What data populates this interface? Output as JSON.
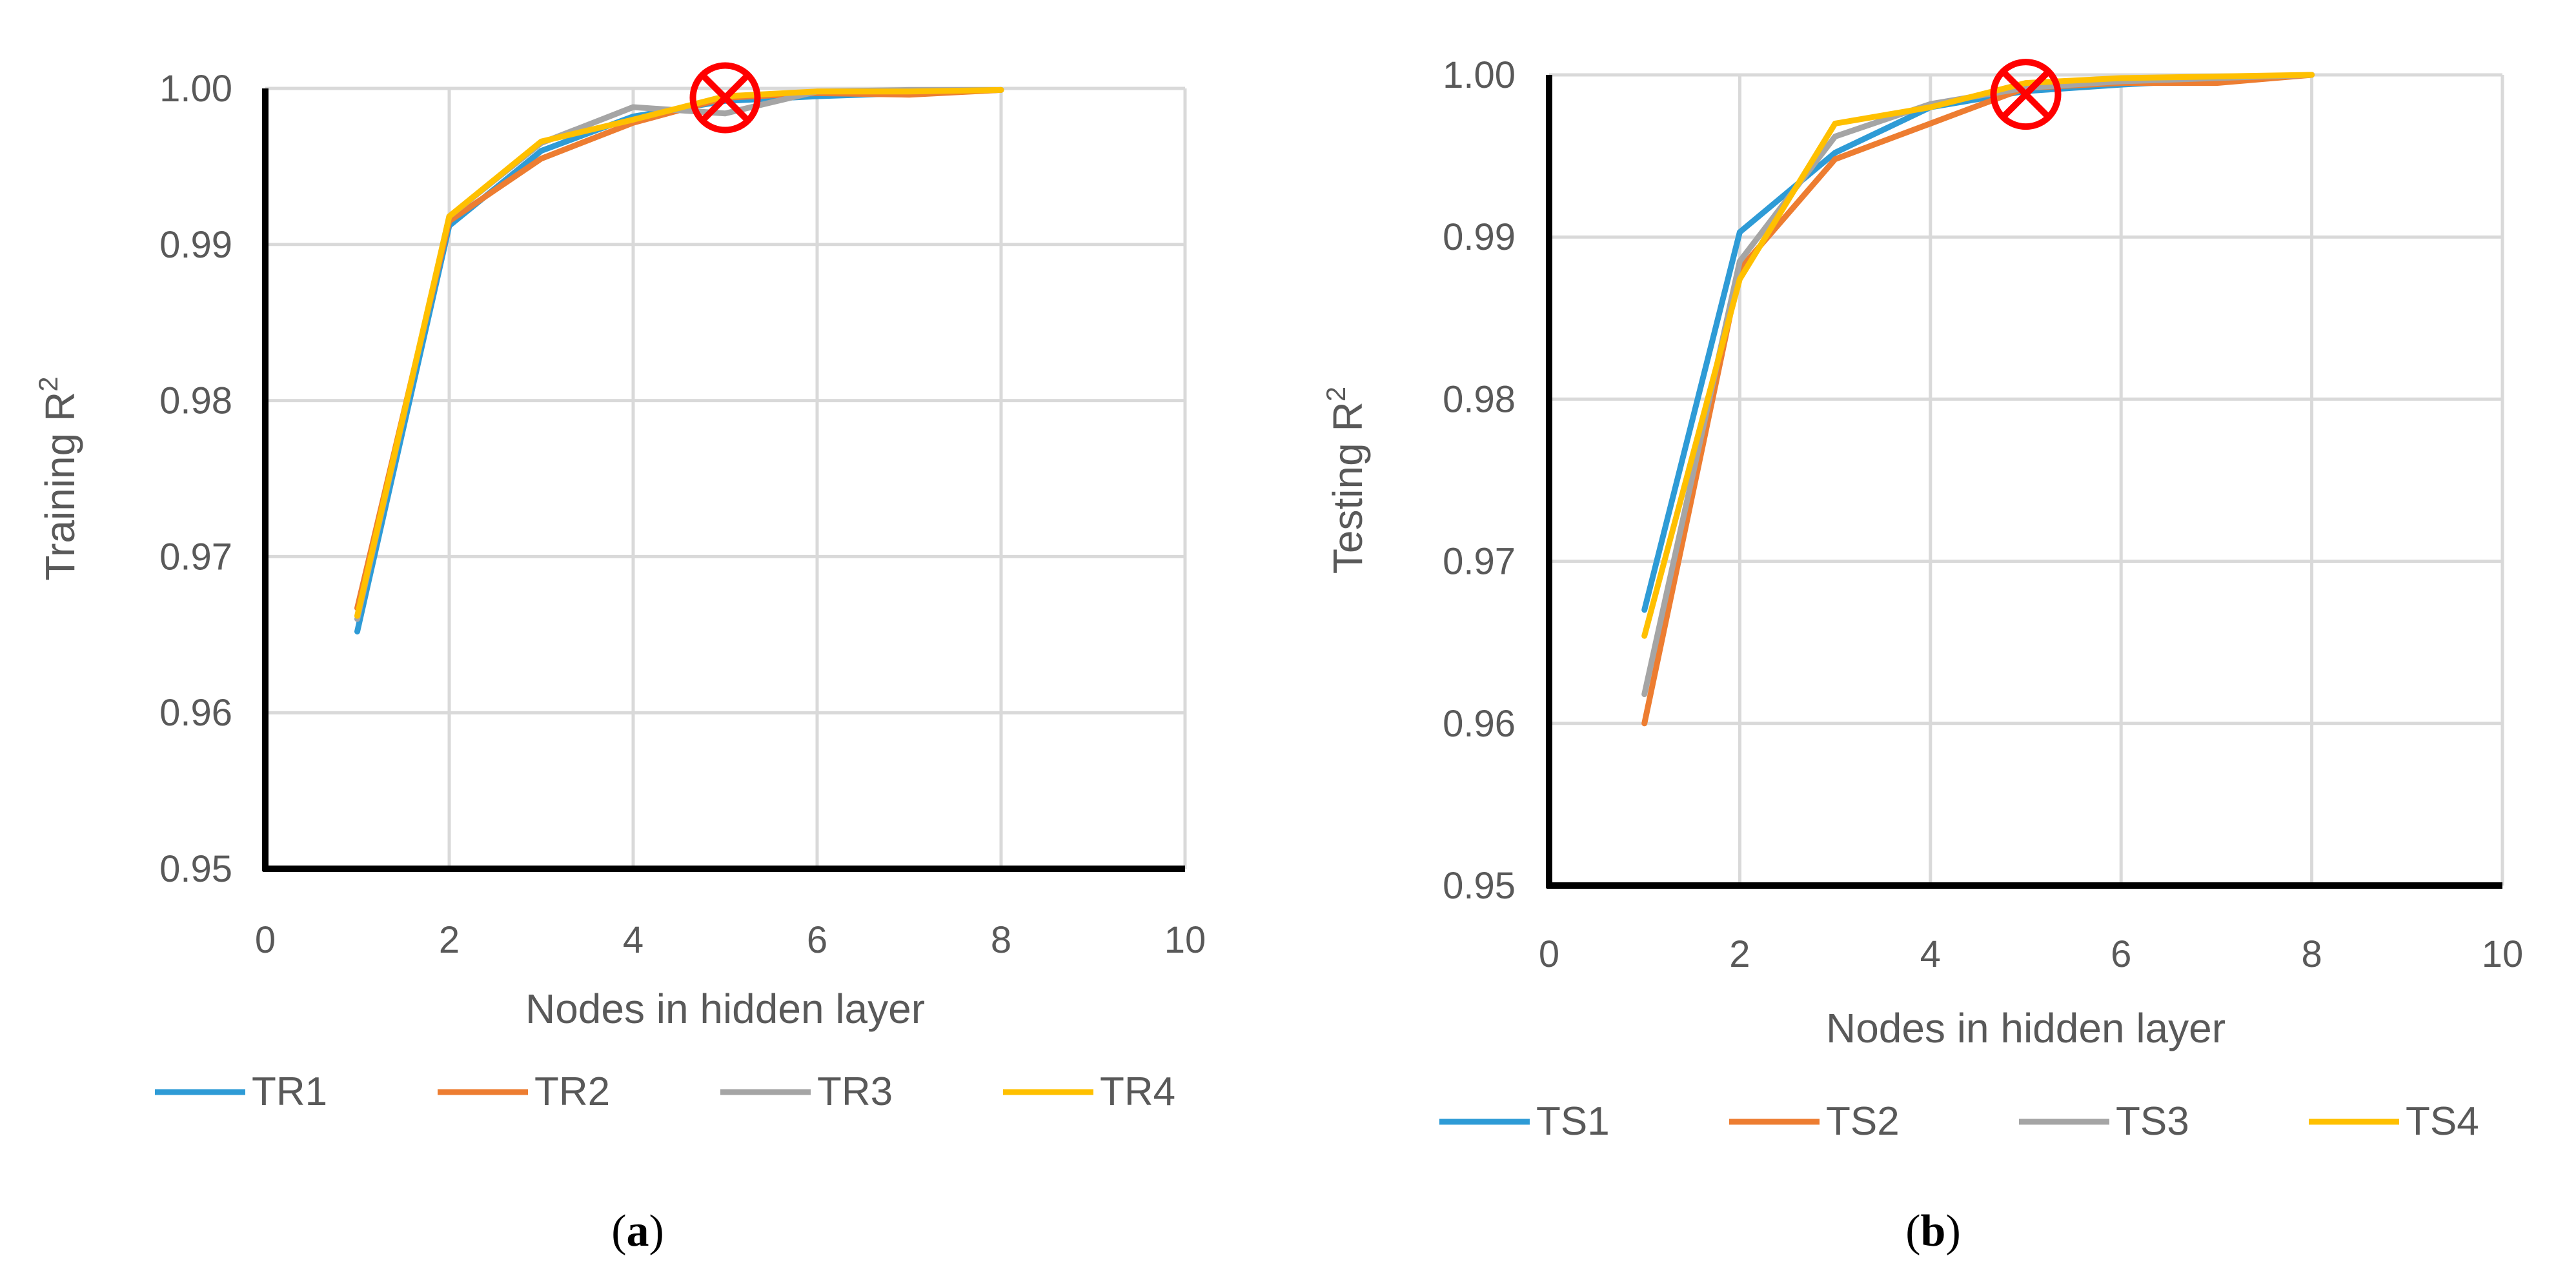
{
  "colors": {
    "grid": "#d9d9d9",
    "axis": "#000000",
    "text": "#595959",
    "marker": "#ff0000"
  },
  "chart_data": [
    {
      "type": "line",
      "panel_label": "a",
      "xlabel": "Nodes in hidden layer",
      "ylabel": "Training R",
      "ylabel_sup": "2",
      "xlim": [
        0,
        10
      ],
      "ylim": [
        0.95,
        1.0
      ],
      "x_ticks": [
        "0",
        "2",
        "4",
        "6",
        "8",
        "10"
      ],
      "y_ticks": [
        "0.95",
        "0.96",
        "0.97",
        "0.98",
        "0.99",
        "1.00"
      ],
      "grid": true,
      "legend_position": "bottom",
      "marker_annotation": {
        "x": 5,
        "y": 0.9994,
        "symbol": "circled-x"
      },
      "series": [
        {
          "name": "TR1",
          "color": "#2e9bd6",
          "x": [
            1,
            2,
            3,
            4,
            5,
            6,
            7,
            8
          ],
          "y": [
            0.9652,
            0.9912,
            0.996,
            0.9982,
            0.9992,
            0.9995,
            0.9997,
            0.9999
          ]
        },
        {
          "name": "TR2",
          "color": "#ed7d31",
          "x": [
            1,
            2,
            3,
            4,
            5,
            6,
            7,
            8
          ],
          "y": [
            0.9667,
            0.9915,
            0.9955,
            0.9978,
            0.9994,
            0.9997,
            0.9996,
            0.9999
          ]
        },
        {
          "name": "TR3",
          "color": "#a5a5a5",
          "x": [
            1,
            2,
            3,
            4,
            5,
            6,
            7,
            8
          ],
          "y": [
            0.966,
            0.9918,
            0.9965,
            0.9988,
            0.9984,
            0.9998,
            0.9999,
            0.9999
          ]
        },
        {
          "name": "TR4",
          "color": "#ffc000",
          "x": [
            1,
            2,
            3,
            4,
            5,
            6,
            7,
            8
          ],
          "y": [
            0.9662,
            0.9918,
            0.9966,
            0.998,
            0.9995,
            0.9998,
            0.9998,
            0.9999
          ]
        }
      ]
    },
    {
      "type": "line",
      "panel_label": "b",
      "xlabel": "Nodes in hidden layer",
      "ylabel": "Testing R",
      "ylabel_sup": "2",
      "xlim": [
        0,
        10
      ],
      "ylim": [
        0.95,
        1.0
      ],
      "x_ticks": [
        "0",
        "2",
        "4",
        "6",
        "8",
        "10"
      ],
      "y_ticks": [
        "0.95",
        "0.96",
        "0.97",
        "0.98",
        "0.99",
        "1.00"
      ],
      "grid": true,
      "legend_position": "bottom",
      "marker_annotation": {
        "x": 5,
        "y": 0.9988,
        "symbol": "circled-x"
      },
      "series": [
        {
          "name": "TS1",
          "color": "#2e9bd6",
          "x": [
            1,
            2,
            3,
            4,
            5,
            6,
            7,
            8
          ],
          "y": [
            0.967,
            0.9903,
            0.9952,
            0.998,
            0.999,
            0.9994,
            0.9997,
            1.0
          ]
        },
        {
          "name": "TS2",
          "color": "#ed7d31",
          "x": [
            1,
            2,
            3,
            4,
            5,
            6,
            7,
            8
          ],
          "y": [
            0.96,
            0.988,
            0.9948,
            0.997,
            0.9992,
            0.9995,
            0.9995,
            1.0
          ]
        },
        {
          "name": "TS3",
          "color": "#a5a5a5",
          "x": [
            1,
            2,
            3,
            4,
            5,
            6,
            7,
            8
          ],
          "y": [
            0.9618,
            0.9885,
            0.9962,
            0.9982,
            0.9992,
            0.9996,
            0.9998,
            1.0
          ]
        },
        {
          "name": "TS4",
          "color": "#ffc000",
          "x": [
            1,
            2,
            3,
            4,
            5,
            6,
            7,
            8
          ],
          "y": [
            0.9654,
            0.9874,
            0.997,
            0.998,
            0.9995,
            0.9998,
            0.9999,
            1.0
          ]
        }
      ]
    }
  ]
}
